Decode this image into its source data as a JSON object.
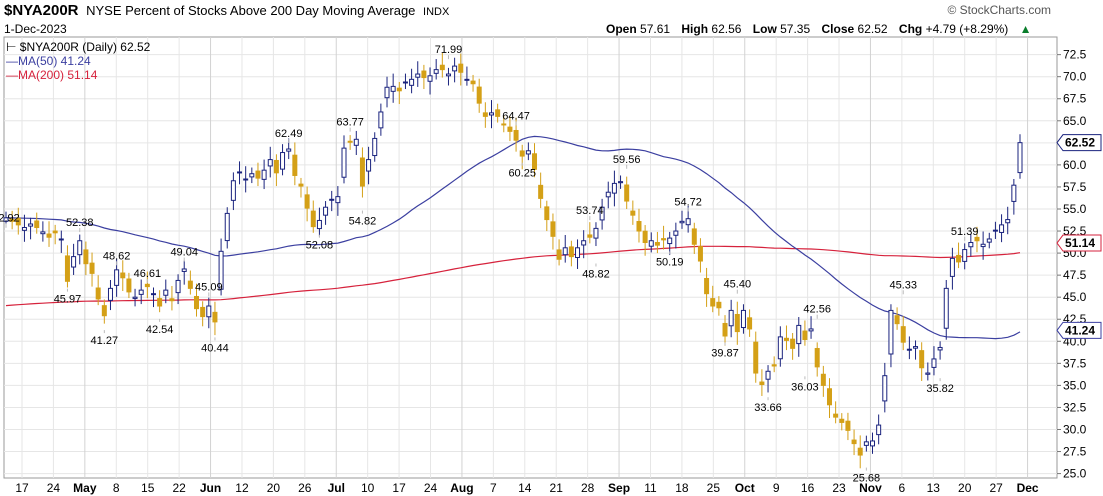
{
  "header": {
    "symbol": "$NYA200R",
    "description": "NYSE Percent of Stocks Above 200 Day Moving Average",
    "exchange": "INDX",
    "date": "1-Dec-2023",
    "brand": "© StockCharts.com",
    "open_label": "Open",
    "open": "57.61",
    "high_label": "High",
    "high": "62.56",
    "low_label": "Low",
    "low": "57.35",
    "close_label": "Close",
    "close": "62.52",
    "chg_label": "Chg",
    "chg": "+4.79 (+8.29%)",
    "chg_icon": "triangle-up-icon"
  },
  "legend": {
    "main": "$NYA200R (Daily) 62.52",
    "ma50": "MA(50) 41.24",
    "ma200": "MA(200) 51.14"
  },
  "colors": {
    "up": "#1a237e",
    "down": "#d4a017",
    "ma50": "#3b3fa0",
    "ma200": "#d6223c",
    "grid": "#e6e6e6"
  },
  "chart_data": {
    "type": "candlestick",
    "ylim": [
      24.5,
      74.5
    ],
    "y_ticks": [
      "72.5",
      "70.0",
      "67.5",
      "65.0",
      "62.5",
      "60.0",
      "57.5",
      "55.0",
      "52.5",
      "50.0",
      "47.5",
      "45.0",
      "42.5",
      "40.0",
      "37.5",
      "35.0",
      "32.5",
      "30.0",
      "27.5",
      "25.0"
    ],
    "x_ticks": [
      "17",
      "24",
      "May",
      "8",
      "15",
      "22",
      "Jun",
      "12",
      "20",
      "26",
      "Jul",
      "10",
      "17",
      "24",
      "Aug",
      "7",
      "14",
      "21",
      "28",
      "Sep",
      "11",
      "18",
      "25",
      "Oct",
      "9",
      "16",
      "23",
      "Nov",
      "6",
      "13",
      "20",
      "27",
      "Dec"
    ],
    "x_ticks_major": [
      "May",
      "Jun",
      "Jul",
      "Aug",
      "Sep",
      "Oct",
      "Nov",
      "Dec"
    ],
    "last_price_tag": "62.52",
    "ma50_tag": "41.24",
    "ma200_tag": "51.14",
    "annotations": [
      {
        "t": "52.92",
        "i": 0,
        "v": 52.92,
        "pos": "above"
      },
      {
        "t": "45.97",
        "i": 10,
        "v": 45.97,
        "pos": "below"
      },
      {
        "t": "52.38",
        "i": 12,
        "v": 52.38,
        "pos": "above"
      },
      {
        "t": "41.27",
        "i": 16,
        "v": 41.27,
        "pos": "below"
      },
      {
        "t": "48.62",
        "i": 18,
        "v": 48.62,
        "pos": "above"
      },
      {
        "t": "46.61",
        "i": 23,
        "v": 46.61,
        "pos": "above"
      },
      {
        "t": "42.54",
        "i": 25,
        "v": 42.54,
        "pos": "below"
      },
      {
        "t": "49.04",
        "i": 29,
        "v": 49.04,
        "pos": "above"
      },
      {
        "t": "45.09",
        "i": 33,
        "v": 45.09,
        "pos": "above"
      },
      {
        "t": "40.44",
        "i": 34,
        "v": 40.44,
        "pos": "below"
      },
      {
        "t": "62.49",
        "i": 46,
        "v": 62.49,
        "pos": "above"
      },
      {
        "t": "52.08",
        "i": 51,
        "v": 52.08,
        "pos": "below"
      },
      {
        "t": "63.77",
        "i": 56,
        "v": 63.77,
        "pos": "above"
      },
      {
        "t": "54.82",
        "i": 58,
        "v": 54.82,
        "pos": "below"
      },
      {
        "t": "71.99",
        "i": 72,
        "v": 71.99,
        "pos": "above"
      },
      {
        "t": "64.47",
        "i": 83,
        "v": 64.47,
        "pos": "above"
      },
      {
        "t": "60.25",
        "i": 84,
        "v": 60.25,
        "pos": "below"
      },
      {
        "t": "53.74",
        "i": 95,
        "v": 53.74,
        "pos": "above"
      },
      {
        "t": "48.82",
        "i": 96,
        "v": 48.82,
        "pos": "below"
      },
      {
        "t": "59.56",
        "i": 101,
        "v": 59.56,
        "pos": "above"
      },
      {
        "t": "50.19",
        "i": 108,
        "v": 50.19,
        "pos": "below"
      },
      {
        "t": "54.72",
        "i": 111,
        "v": 54.72,
        "pos": "above"
      },
      {
        "t": "45.40",
        "i": 119,
        "v": 45.4,
        "pos": "above"
      },
      {
        "t": "39.87",
        "i": 117,
        "v": 39.87,
        "pos": "below"
      },
      {
        "t": "33.66",
        "i": 124,
        "v": 33.66,
        "pos": "below"
      },
      {
        "t": "42.56",
        "i": 132,
        "v": 42.56,
        "pos": "above"
      },
      {
        "t": "36.03",
        "i": 130,
        "v": 36.03,
        "pos": "below"
      },
      {
        "t": "25.68",
        "i": 140,
        "v": 25.68,
        "pos": "below"
      },
      {
        "t": "45.33",
        "i": 146,
        "v": 45.33,
        "pos": "above"
      },
      {
        "t": "35.82",
        "i": 152,
        "v": 35.82,
        "pos": "below"
      },
      {
        "t": "51.39",
        "i": 156,
        "v": 51.39,
        "pos": "above"
      }
    ],
    "closes": [
      54.0,
      53.6,
      53.2,
      52.9,
      53.3,
      52.9,
      52.4,
      51.8,
      52.3,
      51.6,
      46.8,
      49.6,
      51.4,
      48.8,
      47.7,
      44.8,
      42.9,
      46.0,
      48.1,
      47.2,
      45.6,
      45.0,
      45.8,
      46.2,
      45.4,
      44.0,
      45.8,
      44.6,
      46.9,
      48.2,
      46.0,
      43.7,
      42.8,
      44.0,
      42.2,
      50.2,
      54.5,
      58.2,
      59.2,
      58.4,
      59.0,
      58.5,
      59.4,
      60.6,
      59.1,
      61.4,
      61.8,
      58.8,
      57.6,
      55.1,
      53.0,
      53.7,
      55.2,
      56.1,
      56.4,
      61.9,
      62.6,
      62.9,
      57.6,
      60.6,
      63.0,
      66.0,
      68.8,
      68.9,
      68.4,
      69.4,
      69.7,
      70.3,
      69.9,
      70.1,
      70.8,
      70.8,
      70.3,
      71.2,
      70.5,
      69.7,
      69.2,
      67.0,
      65.5,
      65.9,
      65.5,
      64.6,
      63.8,
      62.8,
      61.0,
      61.6,
      59.5,
      56.2,
      53.8,
      51.9,
      49.3,
      50.6,
      49.6,
      50.6,
      51.4,
      51.8,
      52.8,
      55.2,
      56.9,
      57.9,
      58.1,
      55.9,
      54.3,
      52.5,
      51.2,
      51.4,
      50.9,
      51.5,
      51.7,
      52.5,
      53.6,
      53.9,
      51.0,
      49.1,
      45.4,
      44.0,
      43.8,
      40.6,
      43.5,
      41.1,
      43.5,
      41.4,
      36.4,
      35.1,
      36.6,
      37.2,
      40.5,
      40.1,
      39.2,
      41.8,
      40.2,
      41.4,
      37.1,
      35.0,
      32.8,
      31.4,
      30.8,
      29.9,
      28.4,
      27.1,
      28.6,
      28.7,
      30.5,
      36.1,
      43.5,
      42.0,
      39.9,
      39.1,
      39.4,
      37.0,
      36.4,
      38.0,
      39.3,
      46.0,
      49.4,
      49.0,
      50.4,
      51.2,
      51.4,
      51.0,
      51.6,
      52.6,
      53.2,
      53.8,
      57.7,
      62.52
    ]
  }
}
